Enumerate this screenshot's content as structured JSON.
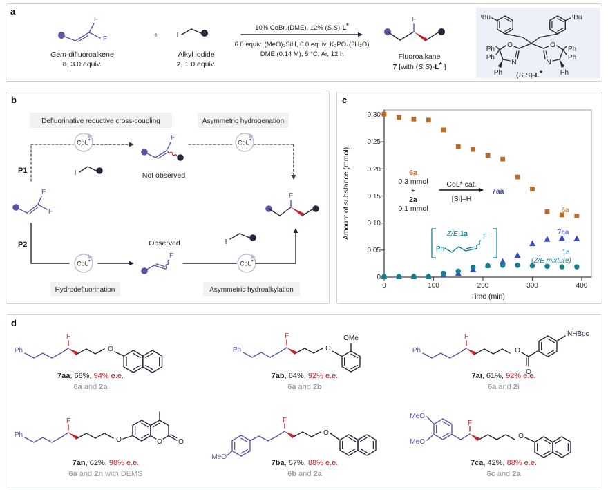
{
  "figure": {
    "panel_a_label": "a",
    "panel_b_label": "b",
    "panel_c_label": "c",
    "panel_d_label": "d"
  },
  "colors": {
    "purple": "#5b54a4",
    "dark": "#26263a",
    "red": "#c1272d",
    "ee_red": "#c52026",
    "gray": "#9b9b9b",
    "orange_6a": "#b96b28",
    "blue_7aa": "#3a4cc4",
    "teal_1a": "#15808d",
    "panel_border": "#c9d0dd",
    "label_box_bg": "#f2f2f4",
    "ligand_box_bg": "#edf1f7"
  },
  "atoms": {
    "F": "F",
    "I": "I",
    "O": "O",
    "N": "N",
    "Ph": "Ph",
    "OMe": "OMe",
    "MeO": "MeO",
    "NHBoc": "NHBoc",
    "plus": "+",
    "tBu": "ᵗBu"
  },
  "ligand_name": {
    "pre": "(",
    "ss": "S,S",
    "post": ")-",
    "l": "L",
    "star": "*"
  },
  "panel_a": {
    "reactant1": {
      "gem": "Gem",
      "rest": "-difluoroalkene",
      "num": "6",
      "equiv": ", 3.0 equiv."
    },
    "reactant2": {
      "name": "Alkyl iodide",
      "num": "2",
      "equiv": ", 1.0 equiv."
    },
    "conditions": {
      "above_pre": "10% CoBr₂(DME), 12% ",
      "below1": "6.0 equiv. (MeO)₃SiH, 6.0 equiv. K₃PO₄(3H₂O)",
      "below2": "DME (0.14 M), 5 °C, Ar, 12 h"
    },
    "product": {
      "name": "Fluoroalkane",
      "num": "7",
      "tag_open": " [with ",
      "tag_close": " ]"
    }
  },
  "panel_b": {
    "box_top_left": "Defluorinative reductive cross-coupling",
    "box_top_right": "Asymmetric hydrogenation",
    "box_bottom_left": "Hydrodefluorination",
    "box_bottom_right": "Asymmetric hydroalkylation",
    "p1": "P1",
    "p2": "P2",
    "col": "CoL",
    "star": "*",
    "not_observed": "Not observed",
    "observed": "Observed"
  },
  "panel_c": {
    "inset": {
      "r1": "6a",
      "r1_amt": "0.3 mmol",
      "plus": "+",
      "r2": "2a",
      "r2_amt": "0.1 mmol",
      "cat": "CoL* cat.",
      "red": "[Si]–H",
      "prod": "7aa"
    },
    "bracket": {
      "ze": "Z/E-",
      "one_a": "1a",
      "ph": "Ph",
      "f": "F"
    },
    "series_labels": {
      "s6a": "6a",
      "s7aa": "7aa",
      "s1a": "1a",
      "s1a_note": "(Z/E mixture)"
    }
  },
  "chart_data": {
    "type": "scatter",
    "title": "",
    "xlabel": "Time (min)",
    "ylabel": "Amount of substance (mmol)",
    "xlim": [
      0,
      420
    ],
    "ylim": [
      0,
      0.305
    ],
    "grid": false,
    "legend_position": "inline-right",
    "x_ticks": [
      0,
      100,
      200,
      300,
      400
    ],
    "x_tick_labels": [
      "0",
      "100",
      "200",
      "300",
      "400"
    ],
    "y_ticks": [
      0,
      0.05,
      0.1,
      0.15,
      0.2,
      0.25,
      0.3
    ],
    "y_tick_labels": [
      "0",
      "0.05",
      "0.10",
      "0.15",
      "0.20",
      "0.25",
      "0.30"
    ],
    "x": [
      0,
      30,
      60,
      90,
      120,
      150,
      180,
      210,
      240,
      270,
      300,
      330,
      360,
      390
    ],
    "series": [
      {
        "name": "6a",
        "marker": "square",
        "color": "#b96b28",
        "values": [
          0.301,
          0.295,
          0.292,
          0.29,
          0.272,
          0.241,
          0.236,
          0.225,
          0.218,
          0.185,
          0.163,
          0.121,
          0.115,
          0.113
        ]
      },
      {
        "name": "7aa",
        "marker": "triangle",
        "color": "#3a4cc4",
        "values": [
          0.001,
          0.001,
          0.001,
          0.001,
          0.004,
          0.007,
          0.014,
          0.022,
          0.029,
          0.04,
          0.062,
          0.07,
          0.072,
          0.071
        ]
      },
      {
        "name": "1a (Z/E mixture)",
        "marker": "circle",
        "color": "#15808d",
        "values": [
          0.001,
          0.001,
          0.001,
          0.001,
          0.007,
          0.011,
          0.018,
          0.021,
          0.022,
          0.022,
          0.021,
          0.02,
          0.019,
          0.019
        ]
      }
    ]
  },
  "panel_d": {
    "products": [
      {
        "name": "7aa",
        "mid": ", 68%, ",
        "ee": "94% e.e.",
        "src_a": "6a",
        "src_and": " and ",
        "src_b": "2a",
        "src_extra": ""
      },
      {
        "name": "7ab",
        "mid": ", 64%, ",
        "ee": "92% e.e.",
        "src_a": "6a",
        "src_and": " and ",
        "src_b": "2b",
        "src_extra": ""
      },
      {
        "name": "7ai",
        "mid": ", 61%, ",
        "ee": "92% e.e.",
        "src_a": "6a",
        "src_and": " and ",
        "src_b": "2i",
        "src_extra": ""
      },
      {
        "name": "7an",
        "mid": ", 62%, ",
        "ee": "98% e.e.",
        "src_a": "6a",
        "src_and": " and ",
        "src_b": "2n",
        "src_extra": " with DEMS"
      },
      {
        "name": "7ba",
        "mid": ", 67%, ",
        "ee": "88% e.e.",
        "src_a": "6b",
        "src_and": " and ",
        "src_b": "2a",
        "src_extra": ""
      },
      {
        "name": "7ca",
        "mid": ", 42%, ",
        "ee": "88% e.e.",
        "src_a": "6c",
        "src_and": " and ",
        "src_b": "2a",
        "src_extra": ""
      }
    ]
  }
}
